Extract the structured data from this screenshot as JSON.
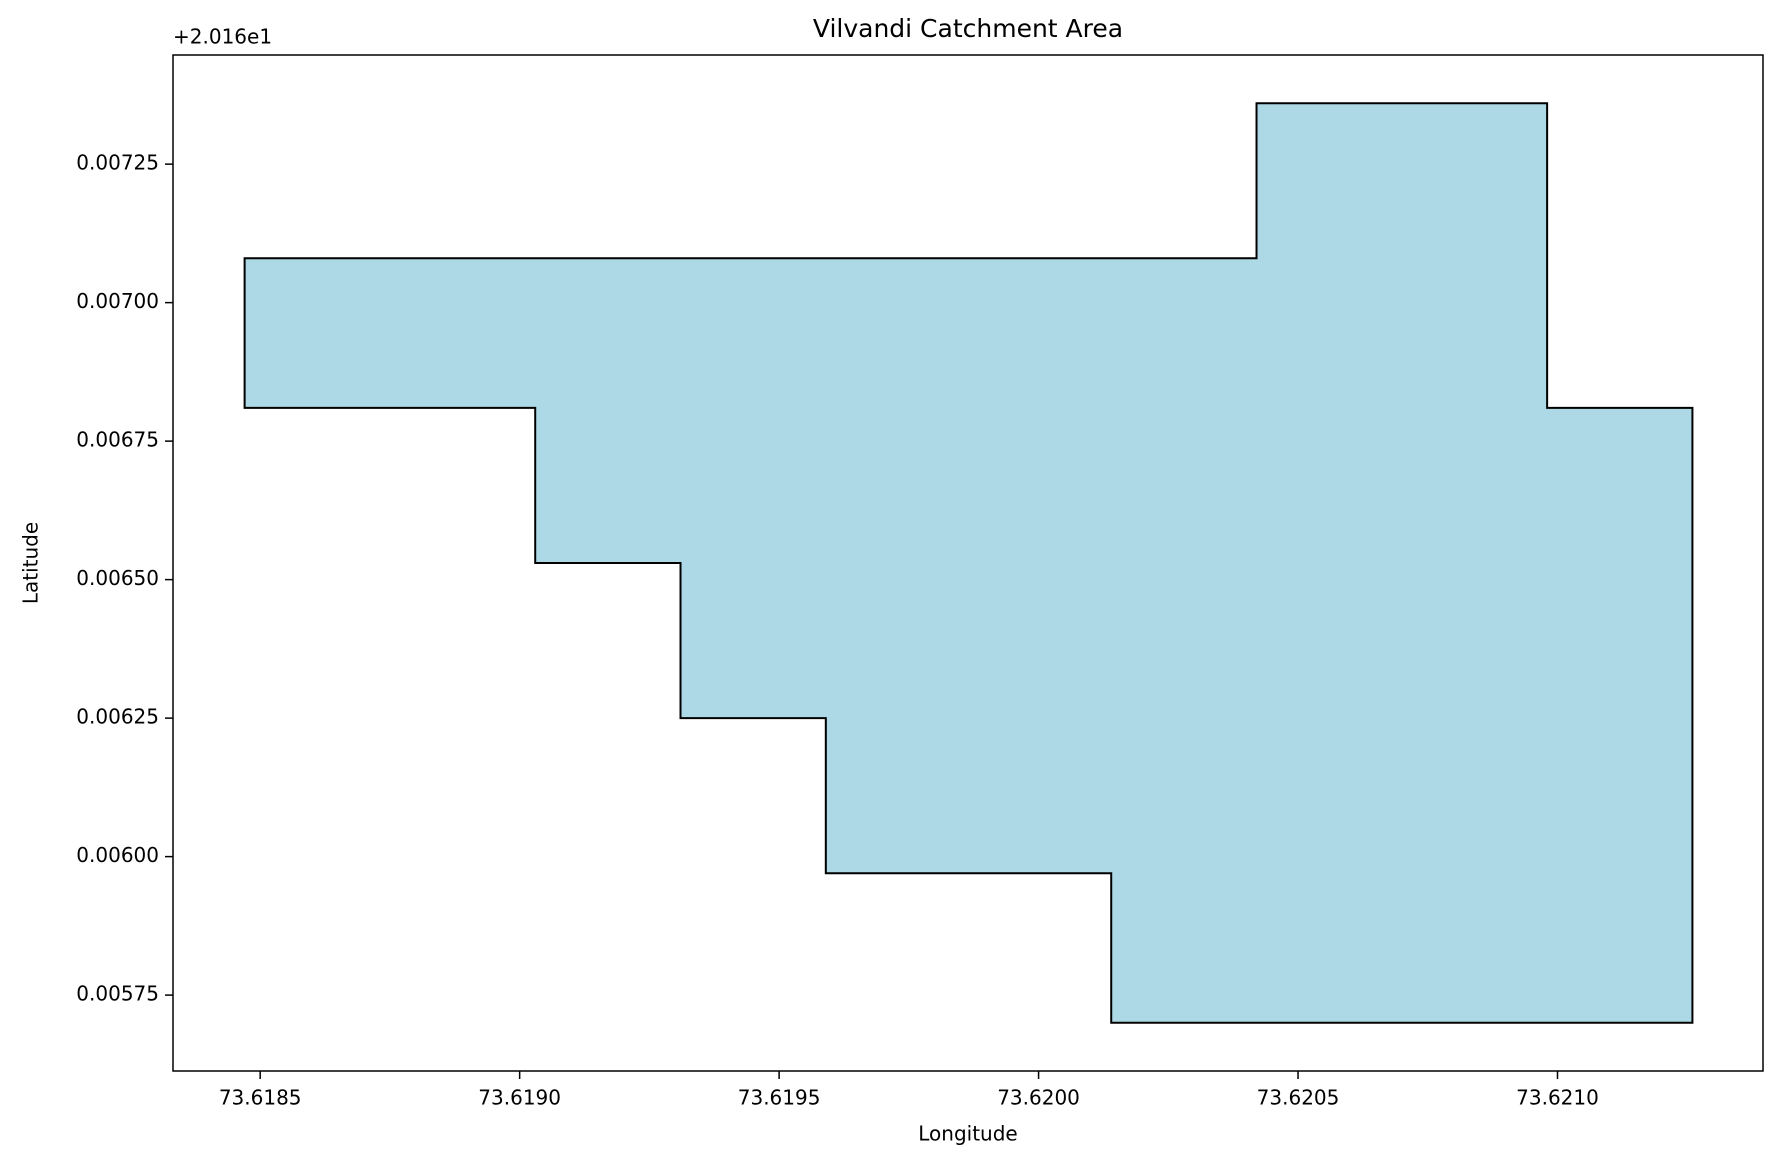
{
  "chart_data": {
    "type": "polygon",
    "title": "Vilvandi Catchment Area",
    "xlabel": "Longitude",
    "ylabel": "Latitude",
    "y_offset_label": "+2.016e1",
    "x": [
      73.61847,
      73.62042,
      73.62042,
      73.62098,
      73.62098,
      73.62126,
      73.62126,
      73.62014,
      73.62014,
      73.61959,
      73.61959,
      73.61931,
      73.61931,
      73.61903,
      73.61903,
      73.61847
    ],
    "y": [
      0.00708,
      0.00708,
      0.00736,
      0.00736,
      0.00681,
      0.00681,
      0.0057,
      0.0057,
      0.00597,
      0.00597,
      0.00625,
      0.00625,
      0.00653,
      0.00653,
      0.00681,
      0.00681
    ],
    "color": "#add8e6",
    "edgecolor": "#000000",
    "xlim": [
      73.618332,
      73.621396
    ],
    "ylim": [
      0.005613,
      0.007447
    ],
    "xticks": [
      {
        "value": 73.6185,
        "label": "73.6185"
      },
      {
        "value": 73.619,
        "label": "73.6190"
      },
      {
        "value": 73.6195,
        "label": "73.6195"
      },
      {
        "value": 73.62,
        "label": "73.6200"
      },
      {
        "value": 73.6205,
        "label": "73.6205"
      },
      {
        "value": 73.621,
        "label": "73.6210"
      }
    ],
    "yticks": [
      {
        "value": 0.00575,
        "label": "0.00575"
      },
      {
        "value": 0.006,
        "label": "0.00600"
      },
      {
        "value": 0.00625,
        "label": "0.00625"
      },
      {
        "value": 0.0065,
        "label": "0.00650"
      },
      {
        "value": 0.00675,
        "label": "0.00675"
      },
      {
        "value": 0.007,
        "label": "0.00700"
      },
      {
        "value": 0.00725,
        "label": "0.00725"
      }
    ],
    "grid": false
  }
}
